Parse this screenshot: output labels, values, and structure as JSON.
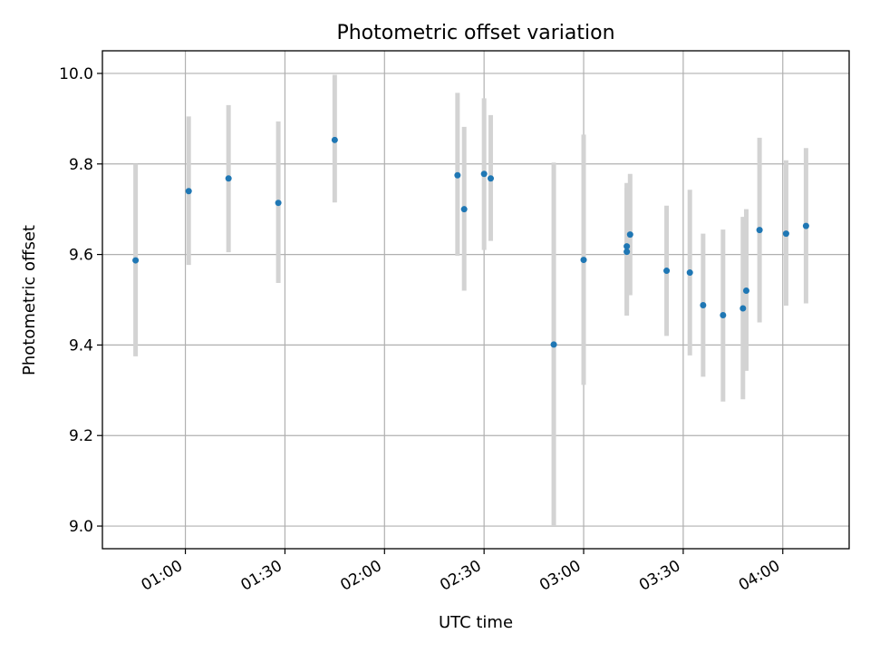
{
  "chart_data": {
    "type": "scatter",
    "title": "Photometric offset variation",
    "xlabel": "UTC time",
    "ylabel": "Photometric offset",
    "x_range": [
      "00:35",
      "04:20"
    ],
    "ylim": [
      8.95,
      10.05
    ],
    "x_ticks": [
      "01:00",
      "01:30",
      "02:00",
      "02:30",
      "03:00",
      "03:30",
      "04:00"
    ],
    "y_ticks": [
      "9.0",
      "9.2",
      "9.4",
      "9.6",
      "9.8",
      "10.0"
    ],
    "grid": true,
    "colors": {
      "point": "#1f77b4",
      "errorbar": "#d3d3d3",
      "grid": "#b0b0b0"
    },
    "points": [
      {
        "x": "00:45",
        "y": 9.587,
        "y_low": 9.375,
        "y_high": 9.8
      },
      {
        "x": "01:01",
        "y": 9.74,
        "y_low": 9.577,
        "y_high": 9.905
      },
      {
        "x": "01:13",
        "y": 9.768,
        "y_low": 9.605,
        "y_high": 9.93
      },
      {
        "x": "01:28",
        "y": 9.714,
        "y_low": 9.537,
        "y_high": 9.894
      },
      {
        "x": "01:45",
        "y": 9.853,
        "y_low": 9.715,
        "y_high": 9.997
      },
      {
        "x": "02:22",
        "y": 9.775,
        "y_low": 9.597,
        "y_high": 9.957
      },
      {
        "x": "02:24",
        "y": 9.7,
        "y_low": 9.52,
        "y_high": 9.882
      },
      {
        "x": "02:30",
        "y": 9.778,
        "y_low": 9.61,
        "y_high": 9.945
      },
      {
        "x": "02:32",
        "y": 9.768,
        "y_low": 9.63,
        "y_high": 9.908
      },
      {
        "x": "02:51",
        "y": 9.401,
        "y_low": 9.0,
        "y_high": 9.803
      },
      {
        "x": "03:00",
        "y": 9.588,
        "y_low": 9.312,
        "y_high": 9.865
      },
      {
        "x": "03:13",
        "y": 9.606,
        "y_low": 9.465,
        "y_high": 9.747
      },
      {
        "x": "03:13",
        "y": 9.618,
        "y_low": 9.478,
        "y_high": 9.758
      },
      {
        "x": "03:14",
        "y": 9.644,
        "y_low": 9.51,
        "y_high": 9.778
      },
      {
        "x": "03:25",
        "y": 9.564,
        "y_low": 9.42,
        "y_high": 9.708
      },
      {
        "x": "03:32",
        "y": 9.56,
        "y_low": 9.377,
        "y_high": 9.743
      },
      {
        "x": "03:36",
        "y": 9.488,
        "y_low": 9.33,
        "y_high": 9.646
      },
      {
        "x": "03:42",
        "y": 9.466,
        "y_low": 9.275,
        "y_high": 9.655
      },
      {
        "x": "03:48",
        "y": 9.481,
        "y_low": 9.28,
        "y_high": 9.683
      },
      {
        "x": "03:49",
        "y": 9.52,
        "y_low": 9.343,
        "y_high": 9.7
      },
      {
        "x": "03:53",
        "y": 9.654,
        "y_low": 9.45,
        "y_high": 9.858
      },
      {
        "x": "04:01",
        "y": 9.646,
        "y_low": 9.487,
        "y_high": 9.808
      },
      {
        "x": "04:07",
        "y": 9.663,
        "y_low": 9.492,
        "y_high": 9.835
      }
    ]
  }
}
